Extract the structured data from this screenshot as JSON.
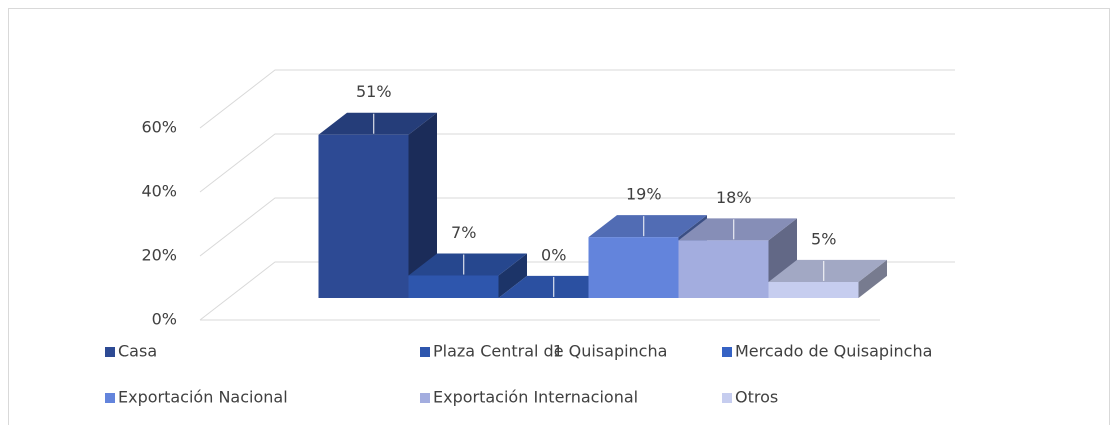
{
  "chart_data": {
    "type": "bar3d",
    "categories": [
      "1"
    ],
    "series": [
      {
        "name": "Casa",
        "color": "#2d4a94",
        "values": [
          51
        ],
        "value_labels": [
          "51%"
        ]
      },
      {
        "name": "Plaza Central de  Quisapincha",
        "color": "#2e56ad",
        "values": [
          7
        ],
        "value_labels": [
          "7%"
        ]
      },
      {
        "name": "Mercado de Quisapincha",
        "color": "#3562c4",
        "values": [
          0
        ],
        "value_labels": [
          "0%"
        ]
      },
      {
        "name": "Exportación Nacional",
        "color": "#6384dc",
        "values": [
          19
        ],
        "value_labels": [
          "19%"
        ]
      },
      {
        "name": "Exportación Internacional",
        "color": "#a3addf",
        "values": [
          18
        ],
        "value_labels": [
          "18%"
        ]
      },
      {
        "name": "Otros",
        "color": "#c6cdef",
        "values": [
          5
        ],
        "value_labels": [
          "5%"
        ]
      }
    ],
    "ylim": [
      0,
      60
    ],
    "yticks": [
      {
        "value": 0,
        "label": "0%"
      },
      {
        "value": 20,
        "label": "20%"
      },
      {
        "value": 40,
        "label": "40%"
      },
      {
        "value": 60,
        "label": "60%"
      }
    ],
    "grid": true,
    "legend": "bottom"
  }
}
